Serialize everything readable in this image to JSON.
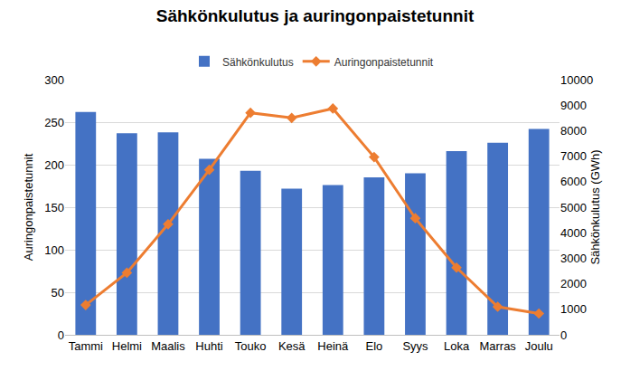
{
  "chart_data": {
    "type": "bar",
    "title": "Sähkönkulutus ja auringonpaistetunnit",
    "categories": [
      "Tammi",
      "Helmi",
      "Maalis",
      "Huhti",
      "Touko",
      "Kesä",
      "Heinä",
      "Elo",
      "Syys",
      "Loka",
      "Marras",
      "Joulu"
    ],
    "series": [
      {
        "name": "Sähkönkulutus",
        "type": "bar",
        "axis": "y2",
        "color": "#4472c4",
        "values": [
          8730,
          7900,
          7930,
          6900,
          6430,
          5730,
          5870,
          6170,
          6330,
          7200,
          7530,
          8070
        ]
      },
      {
        "name": "Auringonpaistetunnit",
        "type": "line",
        "color": "#ed7d31",
        "marker": "diamond",
        "values": [
          35,
          73,
          130,
          194,
          261,
          255,
          266,
          209,
          137,
          79,
          33,
          25
        ]
      }
    ],
    "y_label": "Auringonpaistetunnit",
    "y2_label": "Sähkönkulutus (GWh)",
    "ylim": [
      0,
      300
    ],
    "yticks": [
      0,
      50,
      100,
      150,
      200,
      250,
      300
    ],
    "y2lim": [
      0,
      10000
    ],
    "y2ticks": [
      0,
      1000,
      2000,
      3000,
      4000,
      5000,
      6000,
      7000,
      8000,
      9000,
      10000
    ],
    "grid": true,
    "legend": "top"
  }
}
